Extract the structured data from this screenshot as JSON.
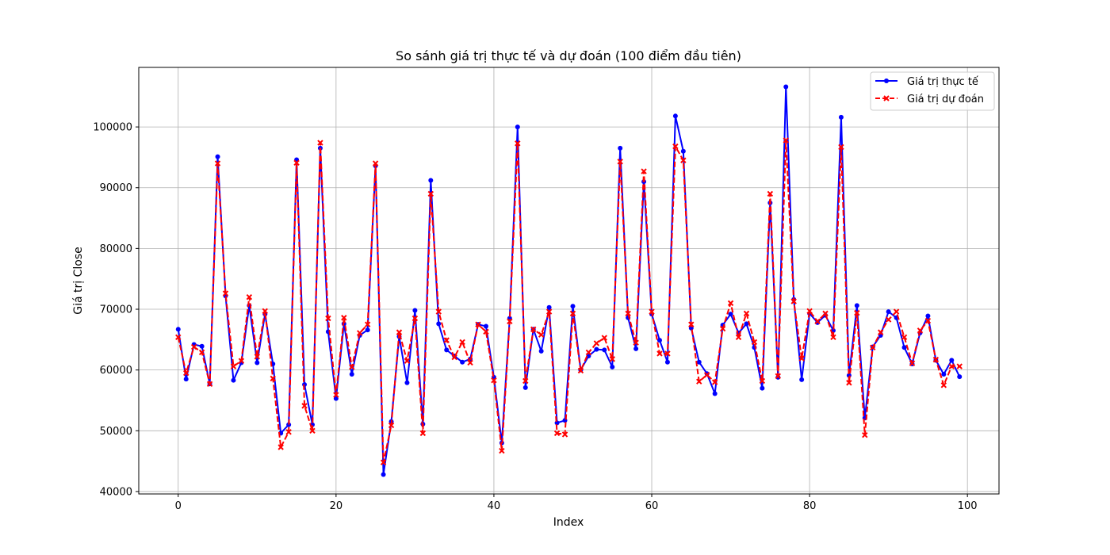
{
  "chart_data": {
    "type": "line",
    "title": "So sánh giá trị thực tế và dự đoán (100 điểm đầu tiên)",
    "xlabel": "Index",
    "ylabel": "Giá trị Close",
    "xlim": [
      -5,
      104
    ],
    "ylim": [
      39600,
      109800
    ],
    "xticks": [
      0,
      20,
      40,
      60,
      80,
      100
    ],
    "yticks": [
      40000,
      50000,
      60000,
      70000,
      80000,
      90000,
      100000
    ],
    "grid": true,
    "legend_position": "top-right",
    "x": [
      0,
      1,
      2,
      3,
      4,
      5,
      6,
      7,
      8,
      9,
      10,
      11,
      12,
      13,
      14,
      15,
      16,
      17,
      18,
      19,
      20,
      21,
      22,
      23,
      24,
      25,
      26,
      27,
      28,
      29,
      30,
      31,
      32,
      33,
      34,
      35,
      36,
      37,
      38,
      39,
      40,
      41,
      42,
      43,
      44,
      45,
      46,
      47,
      48,
      49,
      50,
      51,
      52,
      53,
      54,
      55,
      56,
      57,
      58,
      59,
      60,
      61,
      62,
      63,
      64,
      65,
      66,
      67,
      68,
      69,
      70,
      71,
      72,
      73,
      74,
      75,
      76,
      77,
      78,
      79,
      80,
      81,
      82,
      83,
      84,
      85,
      86,
      87,
      88,
      89,
      90,
      91,
      92,
      93,
      94,
      95,
      96,
      97,
      98,
      99
    ],
    "series": [
      {
        "name": "Giá trị thực tế",
        "color": "#0000ff",
        "style": "solid",
        "marker": "circle",
        "values": [
          66700,
          58500,
          64200,
          63900,
          57700,
          95100,
          72200,
          58300,
          61200,
          70600,
          61200,
          69200,
          61000,
          49600,
          51000,
          94600,
          57600,
          51000,
          96500,
          66300,
          55300,
          67600,
          59300,
          65700,
          66600,
          93600,
          42800,
          51500,
          65500,
          57900,
          69800,
          51100,
          91200,
          67600,
          63300,
          62300,
          61300,
          61800,
          67500,
          67200,
          58800,
          48000,
          68500,
          100000,
          57100,
          66700,
          63100,
          70300,
          51300,
          51700,
          70500,
          60000,
          62300,
          63400,
          63300,
          60500,
          96500,
          68600,
          63500,
          91000,
          69200,
          64900,
          61300,
          101800,
          96000,
          66900,
          61300,
          59400,
          56100,
          67400,
          69200,
          66100,
          67600,
          63700,
          57000,
          87500,
          58800,
          106600,
          71600,
          58400,
          69300,
          67800,
          69000,
          66500,
          101600,
          59100,
          70600,
          52100,
          63800,
          65700,
          69600,
          68600,
          63700,
          61000,
          66100,
          68900,
          61600,
          59300,
          61600,
          58900
        ]
      },
      {
        "name": "Giá trị dự đoán",
        "color": "#ff0000",
        "style": "dashed",
        "marker": "x",
        "values": [
          65400,
          59500,
          63800,
          62900,
          57700,
          94000,
          72600,
          60600,
          61500,
          72000,
          62200,
          69700,
          58600,
          47300,
          49800,
          94100,
          54100,
          50000,
          97400,
          68500,
          55900,
          68600,
          60500,
          66100,
          67500,
          94000,
          44800,
          50900,
          66200,
          61500,
          68500,
          49600,
          89000,
          69600,
          64900,
          62100,
          64600,
          61200,
          67500,
          66300,
          58300,
          46700,
          68000,
          97300,
          58200,
          66700,
          65800,
          69600,
          49600,
          49400,
          69300,
          59900,
          62900,
          64400,
          65300,
          61800,
          94300,
          69300,
          64500,
          92700,
          69600,
          62700,
          62700,
          96800,
          94500,
          67500,
          58100,
          59200,
          58000,
          66800,
          71000,
          65400,
          69300,
          64600,
          58200,
          89000,
          59000,
          97800,
          71300,
          61900,
          69700,
          68000,
          69300,
          65400,
          96700,
          57900,
          69400,
          49300,
          63700,
          66200,
          68300,
          69600,
          65400,
          61100,
          66500,
          68100,
          61700,
          57500,
          60600,
          60600
        ]
      }
    ]
  }
}
